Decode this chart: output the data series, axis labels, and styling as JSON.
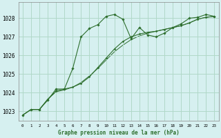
{
  "title": "Graphe pression niveau de la mer (hPa)",
  "background_color": "#d6f0f0",
  "plot_bg_color": "#d6f0f0",
  "grid_color": "#b0d8c8",
  "line_color": "#2d6e2d",
  "marker_color": "#2d6e2d",
  "xlim": [
    -0.5,
    23.5
  ],
  "ylim": [
    1022.5,
    1028.85
  ],
  "yticks": [
    1023,
    1024,
    1025,
    1026,
    1027,
    1028
  ],
  "xticks": [
    0,
    1,
    2,
    3,
    4,
    5,
    6,
    7,
    8,
    9,
    10,
    11,
    12,
    13,
    14,
    15,
    16,
    17,
    18,
    19,
    20,
    21,
    22,
    23
  ],
  "series1": [
    1022.8,
    1023.1,
    1023.1,
    1023.6,
    1024.2,
    1024.2,
    1025.3,
    1027.0,
    1027.45,
    1027.65,
    1028.1,
    1028.2,
    1027.95,
    1026.9,
    1027.5,
    1027.1,
    1027.0,
    1027.2,
    1027.5,
    1027.7,
    1028.0,
    1028.05,
    1028.2,
    1028.1
  ],
  "series2": [
    1022.8,
    1023.1,
    1023.1,
    1023.65,
    1024.1,
    1024.2,
    1024.3,
    1024.5,
    1024.85,
    1025.35,
    1025.85,
    1026.35,
    1026.75,
    1027.0,
    1027.15,
    1027.25,
    1027.3,
    1027.4,
    1027.5,
    1027.6,
    1027.75,
    1027.95,
    1028.05,
    1028.1
  ],
  "series3": [
    1022.8,
    1023.1,
    1023.1,
    1023.65,
    1024.05,
    1024.15,
    1024.3,
    1024.55,
    1024.9,
    1025.3,
    1025.75,
    1026.2,
    1026.55,
    1026.85,
    1027.05,
    1027.2,
    1027.3,
    1027.4,
    1027.5,
    1027.6,
    1027.75,
    1027.95,
    1028.05,
    1028.1
  ]
}
